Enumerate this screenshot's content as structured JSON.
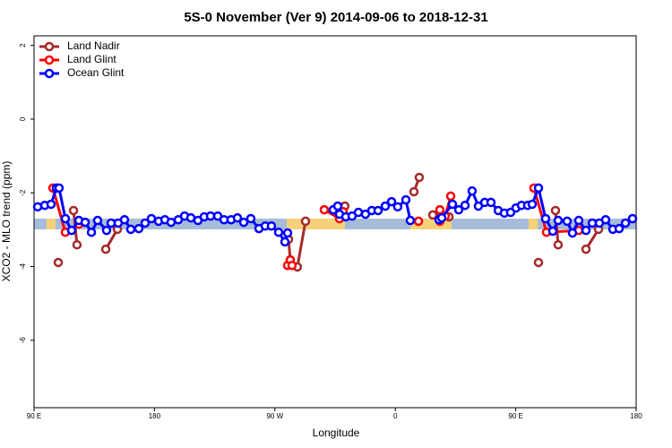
{
  "chart_data": {
    "type": "line",
    "title": "5S-0 November (Ver 9)   2014-09-06 to 2018-12-31",
    "x_label": "Longitude",
    "y_label": "XCO2 - MLO trend (ppm)",
    "xlim": [
      90,
      540
    ],
    "ylim": [
      -7.83,
      2.26
    ],
    "xticks": [
      {
        "value": 90,
        "label": "90 E"
      },
      {
        "value": 180,
        "label": "180"
      },
      {
        "value": 270,
        "label": "90 W"
      },
      {
        "value": 360,
        "label": "0"
      },
      {
        "value": 450,
        "label": "90 E"
      },
      {
        "value": 540,
        "label": "180"
      }
    ],
    "yticks": [
      2,
      0,
      -2,
      -4,
      -6
    ],
    "legend": "top-left",
    "series": [
      {
        "name": "Land Nadir",
        "color": "#a52a2a",
        "x": [
          108.1,
          null,
          119.5,
          122.1,
          null,
          143.6,
          152.3,
          null,
          280.2,
          281.5,
          286.8,
          292.9,
          null,
          320.3,
          322.3,
          null,
          373.9,
          377.9,
          null,
          388.0,
          400.1,
          null,
          467.0,
          null,
          479.7,
          481.7,
          null,
          502.5,
          511.9
        ],
        "values": [
          -3.89,
          null,
          -2.48,
          -3.41,
          null,
          -3.53,
          -2.99,
          null,
          -3.26,
          -3.82,
          -4.01,
          -2.77,
          null,
          -2.6,
          -2.36,
          null,
          -1.97,
          -1.58,
          null,
          -2.6,
          -2.65,
          null,
          -3.89,
          null,
          -2.48,
          -3.41,
          null,
          -3.53,
          -2.99
        ]
      },
      {
        "name": "Land Glint",
        "color": "#ff0000",
        "x": [
          104.1,
          113.4,
          123.5,
          null,
          279.5,
          281.5,
          282.8,
          null,
          306.9,
          318.3,
          321.0,
          null,
          377.3,
          null,
          393.3,
          393.3,
          397.3,
          401.4,
          null,
          463.6,
          473.0,
          497.1
        ],
        "values": [
          -1.87,
          -3.07,
          -2.85,
          null,
          -3.97,
          -3.82,
          -3.97,
          null,
          -2.46,
          -2.7,
          -2.51,
          null,
          -2.77,
          null,
          -2.46,
          -2.77,
          -2.63,
          -2.09,
          null,
          -1.87,
          -3.07,
          -3.02
        ]
      },
      {
        "name": "Ocean Glint",
        "color": "#0000ff",
        "x": [
          92.7,
          98.0,
          102.7,
          106.7,
          108.7,
          113.4,
          118.1,
          123.5,
          128.2,
          132.9,
          137.5,
          144.2,
          147.6,
          152.9,
          157.6,
          162.3,
          168.3,
          173.0,
          177.7,
          183.1,
          187.8,
          192.4,
          197.8,
          202.5,
          207.2,
          212.5,
          217.2,
          221.9,
          227.3,
          232.0,
          237.3,
          242.0,
          246.7,
          252.0,
          258.1,
          262.8,
          267.4,
          272.8,
          277.5,
          279.5,
          null,
          313.6,
          317.0,
          318.3,
          323.0,
          327.7,
          332.4,
          337.7,
          342.4,
          347.1,
          352.5,
          357.2,
          361.8,
          367.9,
          371.2,
          null,
          392.7,
          394.7,
          402.7,
          407.4,
          412.1,
          417.4,
          422.1,
          426.8,
          431.5,
          436.9,
          441.5,
          446.2,
          450.2,
          454.3,
          458.9,
          462.3,
          467.0,
          472.3,
          477.7,
          481.7,
          488.4,
          492.4,
          497.1,
          502.5,
          507.2,
          512.5,
          517.2,
          522.6,
          527.3,
          532.0,
          537.3
        ],
        "values": [
          -2.38,
          -2.34,
          -2.31,
          -1.87,
          -1.87,
          -2.7,
          -3.02,
          -2.75,
          -2.8,
          -3.07,
          -2.75,
          -3.02,
          -2.82,
          -2.82,
          -2.73,
          -2.99,
          -2.97,
          -2.82,
          -2.7,
          -2.77,
          -2.73,
          -2.8,
          -2.73,
          -2.63,
          -2.68,
          -2.75,
          -2.65,
          -2.63,
          -2.63,
          -2.73,
          -2.73,
          -2.68,
          -2.8,
          -2.7,
          -2.97,
          -2.9,
          -2.9,
          -3.07,
          -3.33,
          -3.09,
          null,
          -2.46,
          -2.36,
          -2.58,
          -2.65,
          -2.63,
          -2.53,
          -2.58,
          -2.48,
          -2.48,
          -2.36,
          -2.24,
          -2.38,
          -2.19,
          -2.75,
          null,
          -2.73,
          -2.68,
          -2.31,
          -2.46,
          -2.34,
          -1.95,
          -2.36,
          -2.26,
          -2.26,
          -2.48,
          -2.55,
          -2.53,
          -2.41,
          -2.34,
          -2.34,
          -2.31,
          -1.87,
          -2.7,
          -3.04,
          -2.75,
          -2.77,
          -3.09,
          -2.75,
          -3.02,
          -2.82,
          -2.82,
          -2.73,
          -2.99,
          -2.97,
          -2.82,
          -2.7
        ]
      }
    ]
  }
}
